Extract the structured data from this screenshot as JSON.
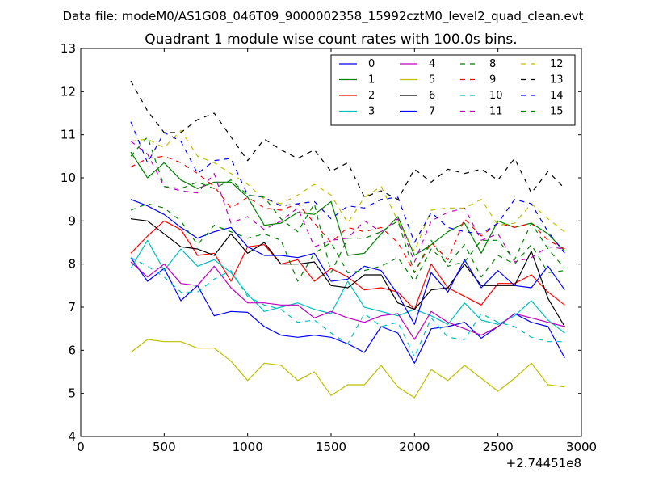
{
  "suptitle": "Data file: modeM0/AS1G08_046T09_9000002358_15992cztM0_level2_quad_clean.evt",
  "chart_data": {
    "type": "line",
    "title": "Quadrant 1 module wise count rates with 100.0s bins.",
    "xlabel": "",
    "ylabel": "",
    "x_offset_label": "+2.74451e8",
    "xlim": [
      0,
      3000
    ],
    "ylim": [
      4,
      13
    ],
    "xticks": [
      0,
      500,
      1000,
      1500,
      2000,
      2500,
      3000
    ],
    "yticks": [
      4,
      5,
      6,
      7,
      8,
      9,
      10,
      11,
      12,
      13
    ],
    "legend_position": "top-right",
    "x": [
      300,
      400,
      500,
      600,
      700,
      800,
      900,
      1000,
      1100,
      1200,
      1300,
      1400,
      1500,
      1600,
      1700,
      1800,
      1900,
      2000,
      2100,
      2200,
      2300,
      2400,
      2500,
      2600,
      2700,
      2800,
      2900
    ],
    "series": [
      {
        "name": "0",
        "color": "#0000ff",
        "dash": "solid",
        "values": [
          8.15,
          7.6,
          7.9,
          7.15,
          7.5,
          6.8,
          6.9,
          6.88,
          6.55,
          6.35,
          6.3,
          6.35,
          6.3,
          6.15,
          5.95,
          6.55,
          6.4,
          5.7,
          6.5,
          6.55,
          6.65,
          6.28,
          6.55,
          6.85,
          6.65,
          6.55,
          5.82
        ]
      },
      {
        "name": "1",
        "color": "#008000",
        "dash": "solid",
        "values": [
          10.6,
          10.0,
          10.35,
          9.95,
          9.75,
          9.9,
          9.9,
          9.55,
          8.9,
          8.95,
          9.2,
          9.15,
          9.45,
          8.2,
          8.25,
          8.7,
          9.1,
          8.2,
          8.45,
          8.75,
          8.95,
          8.25,
          9.0,
          8.85,
          8.95,
          8.7,
          8.3
        ]
      },
      {
        "name": "2",
        "color": "#ff0000",
        "dash": "solid",
        "values": [
          8.25,
          8.65,
          9.0,
          8.8,
          8.2,
          8.25,
          7.6,
          8.4,
          8.45,
          8.0,
          8.1,
          7.6,
          7.9,
          7.7,
          7.4,
          7.45,
          7.35,
          6.95,
          8.0,
          7.45,
          7.25,
          7.05,
          7.55,
          7.55,
          7.75,
          7.35,
          7.05
        ]
      },
      {
        "name": "3",
        "color": "#00bfbf",
        "dash": "solid",
        "values": [
          7.9,
          8.55,
          7.85,
          8.35,
          7.95,
          8.1,
          7.8,
          7.3,
          6.9,
          7.0,
          7.1,
          6.95,
          6.85,
          7.6,
          7.0,
          6.9,
          6.8,
          6.95,
          6.8,
          6.6,
          7.1,
          6.7,
          6.6,
          6.8,
          7.15,
          6.7,
          6.4
        ]
      },
      {
        "name": "4",
        "color": "#bf00bf",
        "dash": "solid",
        "values": [
          8.05,
          7.7,
          8.0,
          7.55,
          7.5,
          7.95,
          7.45,
          7.1,
          7.1,
          7.05,
          7.05,
          6.75,
          6.9,
          6.75,
          6.65,
          6.8,
          6.85,
          6.25,
          6.9,
          6.65,
          6.5,
          6.35,
          6.55,
          6.85,
          6.75,
          6.65,
          6.55
        ]
      },
      {
        "name": "5",
        "color": "#bfbf00",
        "dash": "solid",
        "values": [
          5.95,
          6.25,
          6.2,
          6.2,
          6.05,
          6.05,
          5.75,
          5.3,
          5.7,
          5.65,
          5.3,
          5.5,
          4.95,
          5.2,
          5.2,
          5.65,
          5.15,
          4.9,
          5.55,
          5.3,
          5.65,
          5.35,
          5.05,
          5.35,
          5.7,
          5.2,
          5.15
        ]
      },
      {
        "name": "6",
        "color": "#000000",
        "dash": "solid",
        "values": [
          9.05,
          9.0,
          8.7,
          8.4,
          8.35,
          8.2,
          8.7,
          8.25,
          8.5,
          8.0,
          8.0,
          8.05,
          7.5,
          7.45,
          7.75,
          7.75,
          7.1,
          6.95,
          7.4,
          7.45,
          8.0,
          7.5,
          7.5,
          7.5,
          8.3,
          7.2,
          6.55
        ]
      },
      {
        "name": "7",
        "color": "#0000ff",
        "dash": "solid",
        "values": [
          9.5,
          9.35,
          9.15,
          8.85,
          8.6,
          8.75,
          8.85,
          8.4,
          8.2,
          8.2,
          8.15,
          8.25,
          7.6,
          7.65,
          7.95,
          7.85,
          7.3,
          6.6,
          7.8,
          7.35,
          8.1,
          7.45,
          7.85,
          7.5,
          7.45,
          7.95,
          7.4
        ]
      },
      {
        "name": "8",
        "color": "#008000",
        "dash": "dashed",
        "values": [
          9.25,
          9.4,
          9.3,
          9.0,
          8.45,
          8.9,
          8.75,
          8.6,
          8.7,
          8.55,
          7.6,
          8.25,
          8.5,
          7.8,
          7.85,
          7.95,
          8.15,
          7.6,
          8.35,
          8.0,
          8.45,
          7.7,
          8.2,
          8.0,
          8.45,
          7.8,
          7.85
        ]
      },
      {
        "name": "9",
        "color": "#ff0000",
        "dash": "dashed",
        "values": [
          10.25,
          10.45,
          10.5,
          10.35,
          10.1,
          9.8,
          9.3,
          9.55,
          9.3,
          9.25,
          9.4,
          8.95,
          8.5,
          8.85,
          8.75,
          8.85,
          8.5,
          7.8,
          8.5,
          8.1,
          9.05,
          8.65,
          8.95,
          8.85,
          8.95,
          8.55,
          8.35
        ]
      },
      {
        "name": "10",
        "color": "#00bfbf",
        "dash": "dashed",
        "values": [
          8.15,
          7.95,
          7.7,
          7.35,
          7.35,
          7.65,
          7.85,
          7.25,
          7.05,
          6.95,
          6.65,
          6.7,
          6.4,
          6.15,
          6.85,
          6.55,
          6.65,
          5.85,
          6.75,
          6.3,
          6.25,
          6.85,
          6.65,
          6.55,
          6.3,
          6.2,
          6.2
        ]
      },
      {
        "name": "11",
        "color": "#bf00bf",
        "dash": "dashed",
        "values": [
          10.85,
          10.55,
          9.8,
          9.7,
          9.65,
          10.1,
          8.95,
          9.1,
          8.8,
          9.0,
          9.3,
          8.4,
          8.55,
          8.6,
          9.0,
          8.75,
          9.05,
          8.05,
          9.0,
          9.2,
          9.3,
          8.55,
          8.7,
          8.05,
          8.15,
          8.4,
          8.35
        ]
      },
      {
        "name": "12",
        "color": "#bfbf00",
        "dash": "dashed",
        "values": [
          10.85,
          10.9,
          10.7,
          11.1,
          10.5,
          10.35,
          10.1,
          9.85,
          9.5,
          9.4,
          9.6,
          9.85,
          9.6,
          8.95,
          9.55,
          9.8,
          9.0,
          8.3,
          9.25,
          9.3,
          9.3,
          9.5,
          8.9,
          8.95,
          9.4,
          9.05,
          8.75
        ]
      },
      {
        "name": "13",
        "color": "#000000",
        "dash": "dashed",
        "values": [
          12.25,
          11.55,
          11.05,
          11.05,
          11.35,
          11.5,
          10.95,
          10.4,
          10.9,
          10.65,
          10.45,
          10.65,
          10.15,
          10.35,
          9.55,
          9.7,
          9.5,
          10.2,
          9.9,
          10.2,
          10.1,
          10.2,
          9.95,
          10.45,
          9.65,
          10.15,
          9.75
        ]
      },
      {
        "name": "14",
        "color": "#0000ff",
        "dash": "dashed",
        "values": [
          11.3,
          10.35,
          11.05,
          10.85,
          10.1,
          10.4,
          10.45,
          9.6,
          9.55,
          9.35,
          9.4,
          9.45,
          9.05,
          9.35,
          9.3,
          9.5,
          9.55,
          8.5,
          9.2,
          8.85,
          8.75,
          8.7,
          8.95,
          9.5,
          9.4,
          8.75,
          8.25
        ]
      },
      {
        "name": "15",
        "color": "#008000",
        "dash": "dashed",
        "values": [
          10.5,
          10.95,
          9.8,
          9.75,
          9.9,
          9.75,
          9.95,
          9.6,
          9.55,
          9.05,
          8.75,
          9.4,
          7.8,
          8.6,
          8.6,
          8.75,
          9.0,
          7.8,
          8.55,
          7.95,
          8.05,
          8.55,
          8.55,
          8.1,
          8.95,
          8.35,
          7.9
        ]
      }
    ]
  }
}
